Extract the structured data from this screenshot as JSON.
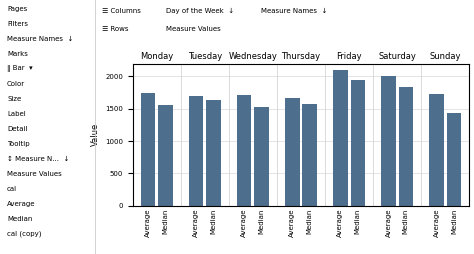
{
  "chart_data": {
    "type": "bar",
    "ylabel": "Value",
    "categories": [
      "Monday",
      "Tuesday",
      "Wednesday",
      "Thursday",
      "Friday",
      "Saturday",
      "Sunday"
    ],
    "series": [
      {
        "name": "Average",
        "color": "#4e6e8e",
        "values": [
          1750,
          1700,
          1720,
          1660,
          2100,
          2000,
          1730
        ]
      },
      {
        "name": "Median",
        "color": "#4e6e8e",
        "values": [
          1560,
          1640,
          1520,
          1580,
          1940,
          1840,
          1430
        ]
      }
    ],
    "ylim": [
      0,
      2200
    ],
    "yticks": [
      0,
      500,
      1000,
      1500,
      2000
    ],
    "grid": true,
    "annotations": {
      "sidebar": [
        "Pages",
        "Filters",
        "Measure Names  ↓",
        "Marks",
        "‖ Bar  ▾",
        "Color",
        "Size",
        "Label",
        "Detail",
        "Tooltip",
        "↕ Measure N...  ↓",
        "Measure Values",
        "cal",
        "Average",
        "Median",
        "cal (copy)"
      ],
      "header": [
        [
          "☰ Columns",
          "Day of the Week  ↓",
          "Measure Names  ↓"
        ],
        [
          "☰ Rows",
          "Measure Values"
        ]
      ]
    }
  }
}
